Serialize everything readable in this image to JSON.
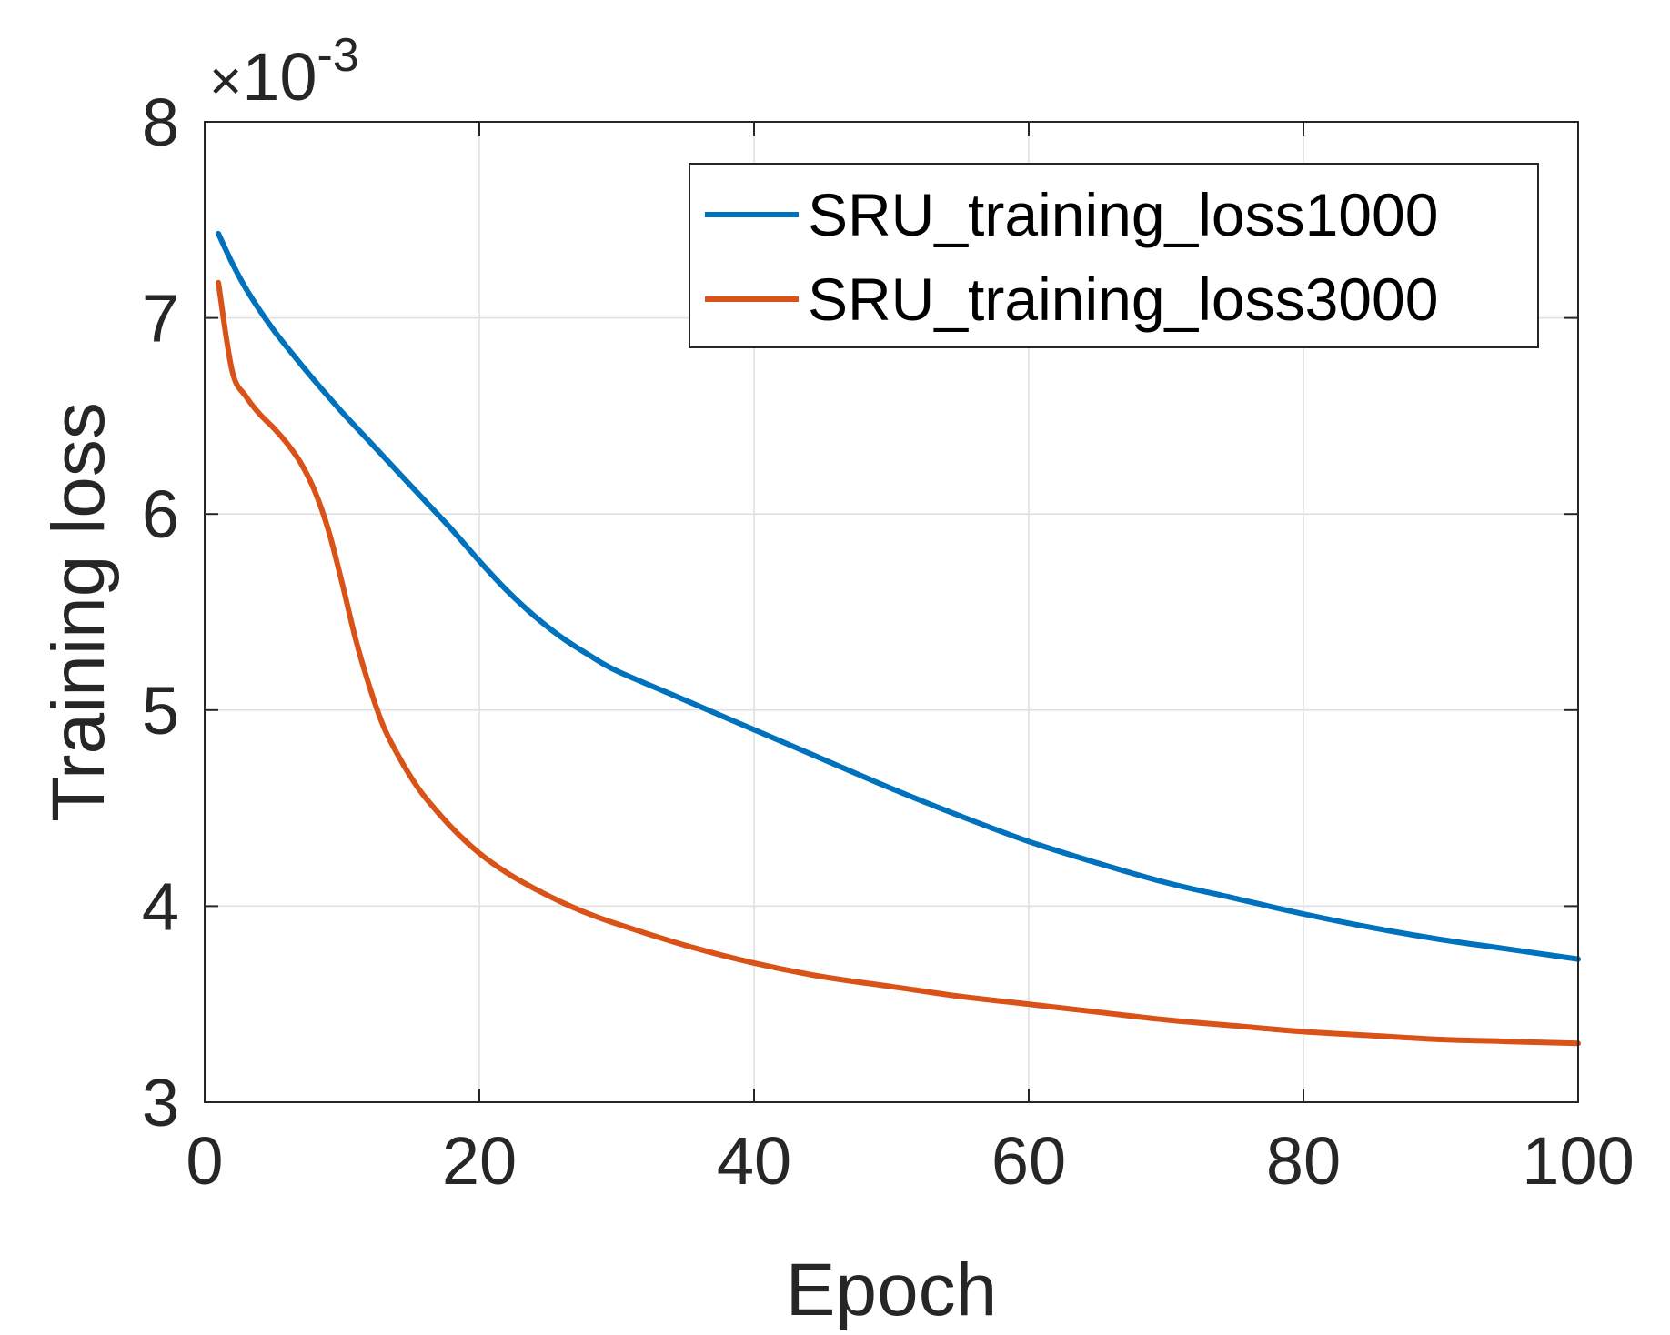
{
  "chart_data": {
    "type": "line",
    "title": "",
    "xlabel": "Epoch",
    "ylabel": "Training loss",
    "xlim": [
      0,
      100
    ],
    "ylim": [
      0.003,
      0.008
    ],
    "xticks": [
      0,
      20,
      40,
      60,
      80,
      100
    ],
    "yticks": [
      3,
      4,
      5,
      6,
      7,
      8
    ],
    "ytick_labels": [
      "3",
      "4",
      "5",
      "6",
      "7",
      "8"
    ],
    "y_exponent_times": "×",
    "y_exponent_base": "10",
    "y_exponent_power": "-3",
    "grid": true,
    "legend_position": "top-right",
    "colors": {
      "axis": "#262626",
      "grid": "#dfdfdf"
    },
    "series": [
      {
        "name": "SRU_training_loss1000",
        "color": "#0072BD",
        "x": [
          1,
          2,
          3,
          4,
          5,
          6,
          8,
          10,
          12,
          14,
          16,
          18,
          20,
          22,
          24,
          26,
          28,
          30,
          35,
          40,
          45,
          50,
          55,
          60,
          65,
          70,
          75,
          80,
          85,
          90,
          95,
          100
        ],
        "y": [
          0.00743,
          0.00728,
          0.00715,
          0.00704,
          0.00694,
          0.00685,
          0.00668,
          0.00652,
          0.00637,
          0.00622,
          0.00607,
          0.00592,
          0.00576,
          0.00561,
          0.00548,
          0.00537,
          0.00528,
          0.0052,
          0.00505,
          0.0049,
          0.00475,
          0.0046,
          0.00446,
          0.00433,
          0.00422,
          0.00412,
          0.00404,
          0.00396,
          0.00389,
          0.00383,
          0.00378,
          0.00373
        ]
      },
      {
        "name": "SRU_training_loss3000",
        "color": "#D95319",
        "x": [
          1,
          2,
          3,
          4,
          5,
          6,
          7,
          8,
          9,
          10,
          11,
          12,
          13,
          14,
          15,
          16,
          18,
          20,
          22,
          24,
          26,
          28,
          30,
          35,
          40,
          45,
          50,
          55,
          60,
          65,
          70,
          75,
          80,
          85,
          90,
          95,
          100
        ],
        "y": [
          0.00718,
          0.00673,
          0.0066,
          0.00651,
          0.00644,
          0.00636,
          0.00626,
          0.00612,
          0.00592,
          0.00565,
          0.00536,
          0.00512,
          0.00492,
          0.00478,
          0.00466,
          0.00456,
          0.0044,
          0.00427,
          0.00417,
          0.00409,
          0.00402,
          0.00396,
          0.00391,
          0.0038,
          0.00371,
          0.00364,
          0.00359,
          0.00354,
          0.0035,
          0.00346,
          0.00342,
          0.00339,
          0.00336,
          0.00334,
          0.00332,
          0.00331,
          0.0033
        ]
      }
    ]
  }
}
